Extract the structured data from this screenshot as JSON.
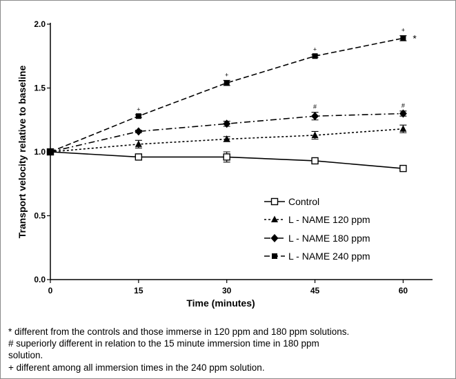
{
  "chart_data": {
    "type": "line",
    "x": [
      0,
      15,
      30,
      45,
      60
    ],
    "xlabel": "Time (minutes)",
    "ylabel": "Transport velocity relative to baseline",
    "xlim": [
      0,
      65
    ],
    "ylim": [
      0,
      2.0
    ],
    "xticks": [
      "0",
      "15",
      "30",
      "45",
      "60"
    ],
    "yticks": [
      "0.0",
      "0.5",
      "1.0",
      "1.5",
      "2.0"
    ],
    "grid": false,
    "legend_position": "bottom-right",
    "series": [
      {
        "name": "Control",
        "values": [
          1.0,
          0.96,
          0.96,
          0.93,
          0.87
        ],
        "errors": [
          0.02,
          0.01,
          0.04,
          0.01,
          0.01
        ],
        "marker": "square-open",
        "line": "solid",
        "annotations": [
          "",
          "",
          "",
          "",
          ""
        ]
      },
      {
        "name": "L - NAME 120 ppm",
        "values": [
          1.0,
          1.06,
          1.1,
          1.13,
          1.18
        ],
        "errors": [
          0.02,
          0.03,
          0.02,
          0.03,
          0.03
        ],
        "marker": "triangle",
        "line": "dotted",
        "annotations": [
          "",
          "",
          "",
          "",
          ""
        ]
      },
      {
        "name": "L - NAME 180 ppm",
        "values": [
          1.0,
          1.16,
          1.22,
          1.28,
          1.3
        ],
        "errors": [
          0.02,
          0.01,
          0.02,
          0.03,
          0.02
        ],
        "marker": "diamond",
        "line": "dash-dot",
        "annotations": [
          "",
          "",
          "",
          "#",
          "#"
        ]
      },
      {
        "name": "L - NAME 240 ppm",
        "values": [
          1.0,
          1.28,
          1.54,
          1.75,
          1.89
        ],
        "errors": [
          0.02,
          0.01,
          0.02,
          0.01,
          0.02
        ],
        "marker": "square",
        "line": "dashed",
        "annotations": [
          "",
          "+",
          "+",
          "+",
          "+"
        ]
      }
    ],
    "side_annotation": "*"
  },
  "footnotes": [
    "* different from the controls and those immerse in 120 ppm and 180 ppm solutions.",
    "# superiorly different in relation to the 15 minute immersion time in 180 ppm",
    "solution.",
    "+ different among all immersion times in the 240 ppm solution."
  ]
}
